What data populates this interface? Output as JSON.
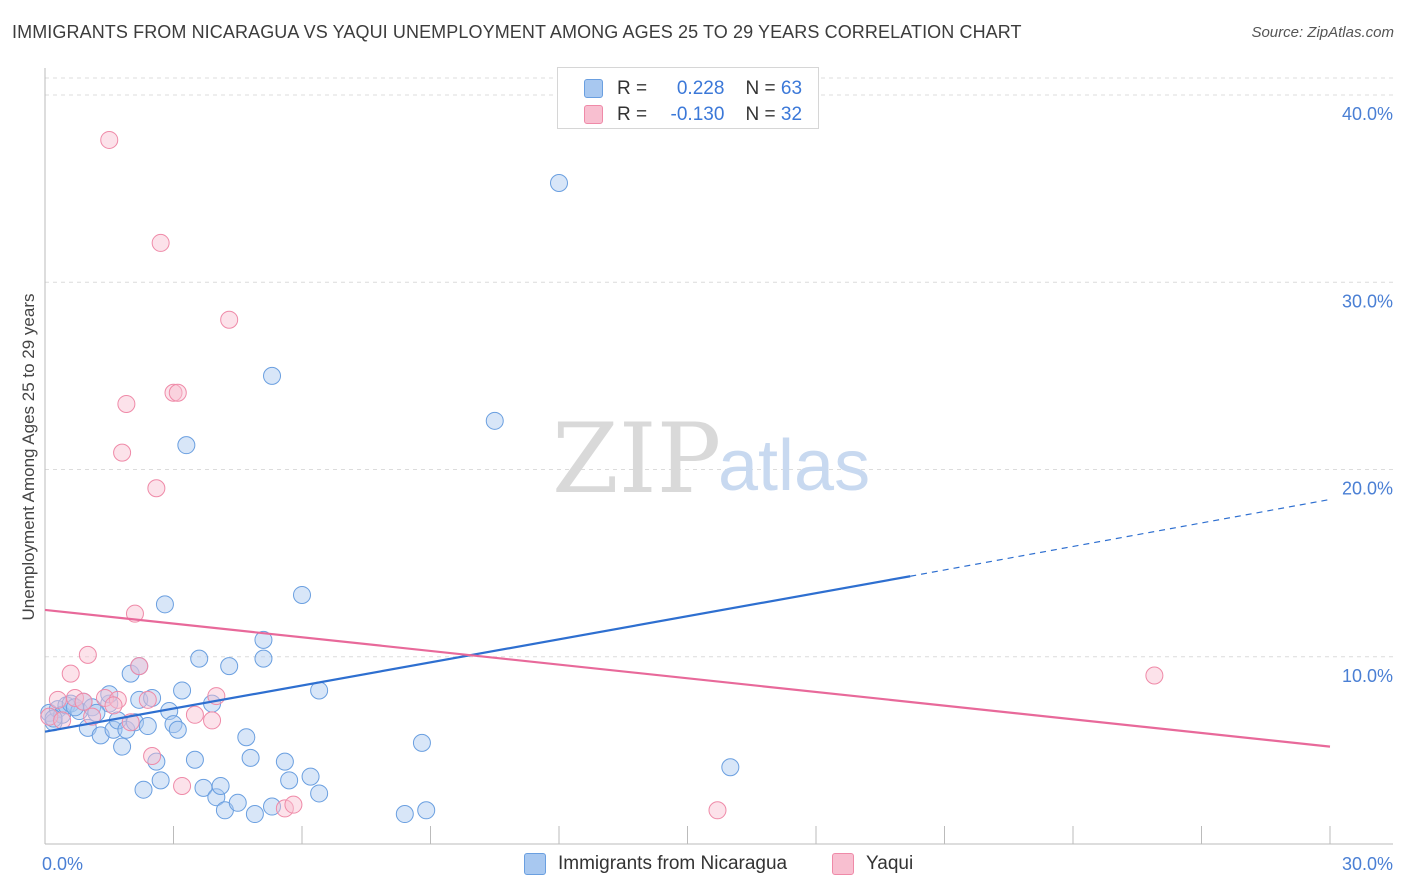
{
  "header": {
    "title": "IMMIGRANTS FROM NICARAGUA VS YAQUI UNEMPLOYMENT AMONG AGES 25 TO 29 YEARS CORRELATION CHART",
    "source": "Source: ZipAtlas.com"
  },
  "watermark": {
    "zip": "ZIP",
    "atlas": "atlas"
  },
  "legend": {
    "rows": [
      {
        "r_label": "R =",
        "r_value": "0.228",
        "n_label": "N =",
        "n_value": "63",
        "color": "#a8c8f0",
        "border": "#6a9fe0"
      },
      {
        "r_label": "R =",
        "r_value": "-0.130",
        "n_label": "N =",
        "n_value": "32",
        "color": "#f8bfd0",
        "border": "#ef8aa8"
      }
    ]
  },
  "bottom_legend": {
    "series1": "Immigrants from Nicaragua",
    "series2": "Yaqui"
  },
  "chart_data": {
    "type": "scatter",
    "title": "IMMIGRANTS FROM NICARAGUA VS YAQUI UNEMPLOYMENT AMONG AGES 25 TO 29 YEARS CORRELATION CHART",
    "xlabel": "",
    "ylabel": "Unemployment Among Ages 25 to 29 years",
    "xlim": [
      0,
      30
    ],
    "ylim": [
      0,
      40
    ],
    "x_tick_labels": [
      "0.0%",
      "30.0%"
    ],
    "y_ticks": [
      10,
      20,
      30,
      40
    ],
    "y_tick_labels": [
      "10.0%",
      "20.0%",
      "30.0%",
      "40.0%"
    ],
    "grid": true,
    "series": [
      {
        "name": "Immigrants from Nicaragua",
        "color": "#6a9fe0",
        "fill": "rgba(168,200,240,0.45)",
        "trend": {
          "x0": 0,
          "y0": 6.0,
          "x1": 20.2,
          "y1": 14.3,
          "dash_x1": 30,
          "dash_y1": 18.4,
          "color": "#2e6fd0"
        },
        "points": [
          [
            0.1,
            7.0
          ],
          [
            0.2,
            6.5
          ],
          [
            0.3,
            7.2
          ],
          [
            0.4,
            6.9
          ],
          [
            0.5,
            7.4
          ],
          [
            0.6,
            7.5
          ],
          [
            0.8,
            7.1
          ],
          [
            0.9,
            7.6
          ],
          [
            1.0,
            6.2
          ],
          [
            1.1,
            7.3
          ],
          [
            1.3,
            5.8
          ],
          [
            1.5,
            7.5
          ],
          [
            1.5,
            8.0
          ],
          [
            1.6,
            6.1
          ],
          [
            1.7,
            6.6
          ],
          [
            1.8,
            5.2
          ],
          [
            1.9,
            6.1
          ],
          [
            2.0,
            9.1
          ],
          [
            2.1,
            6.5
          ],
          [
            2.2,
            7.7
          ],
          [
            2.3,
            2.9
          ],
          [
            2.4,
            6.3
          ],
          [
            2.5,
            7.8
          ],
          [
            2.6,
            4.4
          ],
          [
            2.7,
            3.4
          ],
          [
            2.8,
            12.8
          ],
          [
            2.9,
            7.1
          ],
          [
            3.0,
            6.4
          ],
          [
            3.1,
            6.1
          ],
          [
            3.2,
            8.2
          ],
          [
            3.3,
            21.3
          ],
          [
            3.5,
            4.5
          ],
          [
            3.6,
            9.9
          ],
          [
            3.7,
            3.0
          ],
          [
            3.9,
            7.5
          ],
          [
            4.0,
            2.5
          ],
          [
            4.2,
            1.8
          ],
          [
            4.3,
            9.5
          ],
          [
            4.5,
            2.2
          ],
          [
            4.7,
            5.7
          ],
          [
            4.8,
            4.6
          ],
          [
            4.9,
            1.6
          ],
          [
            5.1,
            9.9
          ],
          [
            5.1,
            10.9
          ],
          [
            5.3,
            2.0
          ],
          [
            5.3,
            25.0
          ],
          [
            5.6,
            4.4
          ],
          [
            5.7,
            3.4
          ],
          [
            6.0,
            13.3
          ],
          [
            6.2,
            3.6
          ],
          [
            6.4,
            2.7
          ],
          [
            6.4,
            8.2
          ],
          [
            8.4,
            1.6
          ],
          [
            8.8,
            5.4
          ],
          [
            8.9,
            1.8
          ],
          [
            10.5,
            22.6
          ],
          [
            12.0,
            35.3
          ],
          [
            16.0,
            4.1
          ],
          [
            0.2,
            6.7
          ],
          [
            0.7,
            7.3
          ],
          [
            1.2,
            7.0
          ],
          [
            2.2,
            9.5
          ],
          [
            4.1,
            3.1
          ]
        ]
      },
      {
        "name": "Yaqui",
        "color": "#ef8aa8",
        "fill": "rgba(248,191,208,0.45)",
        "trend": {
          "x0": 0,
          "y0": 12.5,
          "x1": 30,
          "y1": 5.2,
          "color": "#e8699a"
        },
        "points": [
          [
            0.1,
            6.8
          ],
          [
            0.3,
            7.7
          ],
          [
            0.6,
            9.1
          ],
          [
            0.7,
            7.8
          ],
          [
            0.9,
            7.6
          ],
          [
            1.0,
            10.1
          ],
          [
            1.1,
            6.8
          ],
          [
            1.4,
            7.8
          ],
          [
            1.5,
            37.6
          ],
          [
            1.7,
            7.7
          ],
          [
            1.8,
            20.9
          ],
          [
            1.9,
            23.5
          ],
          [
            2.0,
            6.5
          ],
          [
            2.1,
            12.3
          ],
          [
            2.2,
            9.5
          ],
          [
            2.5,
            4.7
          ],
          [
            2.6,
            19.0
          ],
          [
            2.7,
            32.1
          ],
          [
            3.0,
            24.1
          ],
          [
            3.1,
            24.1
          ],
          [
            3.2,
            3.1
          ],
          [
            3.5,
            6.9
          ],
          [
            3.9,
            6.6
          ],
          [
            4.0,
            7.9
          ],
          [
            4.3,
            28.0
          ],
          [
            5.6,
            1.9
          ],
          [
            5.8,
            2.1
          ],
          [
            15.7,
            1.8
          ],
          [
            25.9,
            9.0
          ],
          [
            0.4,
            6.6
          ],
          [
            1.6,
            7.4
          ],
          [
            2.4,
            7.7
          ]
        ]
      }
    ]
  }
}
